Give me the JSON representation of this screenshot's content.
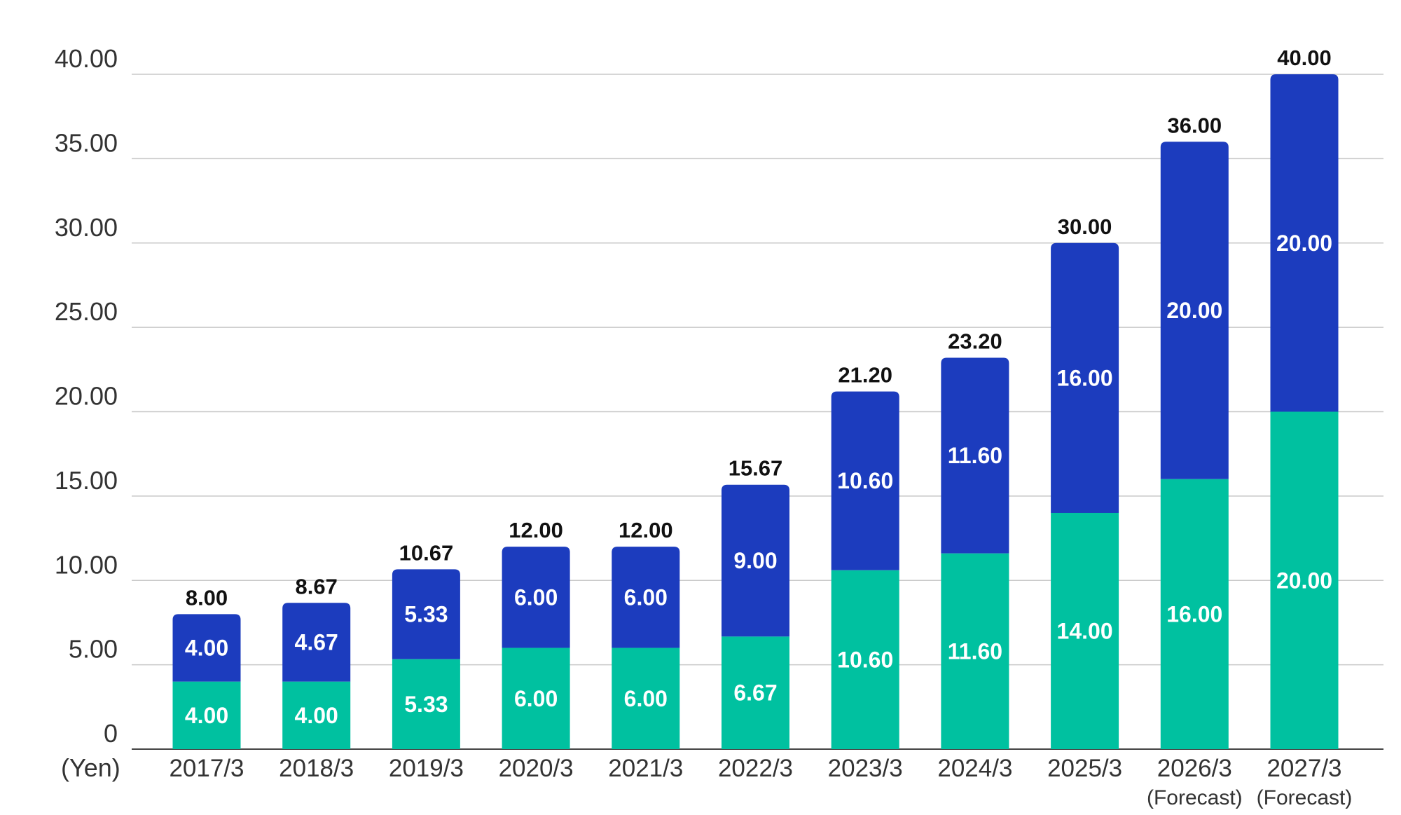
{
  "chart_data": {
    "type": "bar",
    "stacked": true,
    "unit_label": "(Yen)",
    "categories": [
      "2017/3",
      "2018/3",
      "2019/3",
      "2020/3",
      "2021/3",
      "2022/3",
      "2023/3",
      "2024/3",
      "2025/3",
      "2026/3",
      "2027/3"
    ],
    "category_notes": [
      "",
      "",
      "",
      "",
      "",
      "",
      "",
      "",
      "",
      "(Forecast)",
      "(Forecast)"
    ],
    "series": [
      {
        "color": "#00c1a0",
        "values": [
          4.0,
          4.0,
          5.33,
          6.0,
          6.0,
          6.67,
          10.6,
          11.6,
          14.0,
          16.0,
          20.0
        ],
        "labels": [
          "4.00",
          "4.00",
          "5.33",
          "6.00",
          "6.00",
          "6.67",
          "10.60",
          "11.60",
          "14.00",
          "16.00",
          "20.00"
        ]
      },
      {
        "color": "#1c3cbe",
        "values": [
          4.0,
          4.67,
          5.33,
          6.0,
          6.0,
          9.0,
          10.6,
          11.6,
          16.0,
          20.0,
          20.0
        ],
        "labels": [
          "4.00",
          "4.67",
          "5.33",
          "6.00",
          "6.00",
          "9.00",
          "10.60",
          "11.60",
          "16.00",
          "20.00",
          "20.00"
        ]
      }
    ],
    "totals": [
      8.0,
      8.67,
      10.67,
      12.0,
      12.0,
      15.67,
      21.2,
      23.2,
      30.0,
      36.0,
      40.0
    ],
    "total_labels": [
      "8.00",
      "8.67",
      "10.67",
      "12.00",
      "12.00",
      "15.67",
      "21.20",
      "23.20",
      "30.00",
      "36.00",
      "40.00"
    ],
    "ylim": [
      0,
      40
    ],
    "yticks": [
      0,
      5,
      10,
      15,
      20,
      25,
      30,
      35,
      40
    ],
    "ytick_labels": [
      "0",
      "5.00",
      "10.00",
      "15.00",
      "20.00",
      "25.00",
      "30.00",
      "35.00",
      "40.00"
    ],
    "grid": true,
    "gridline_color": "#c8c8c8",
    "axis_color": "#444444",
    "total_label_color": "#111111",
    "segment_label_color": "#ffffff"
  }
}
